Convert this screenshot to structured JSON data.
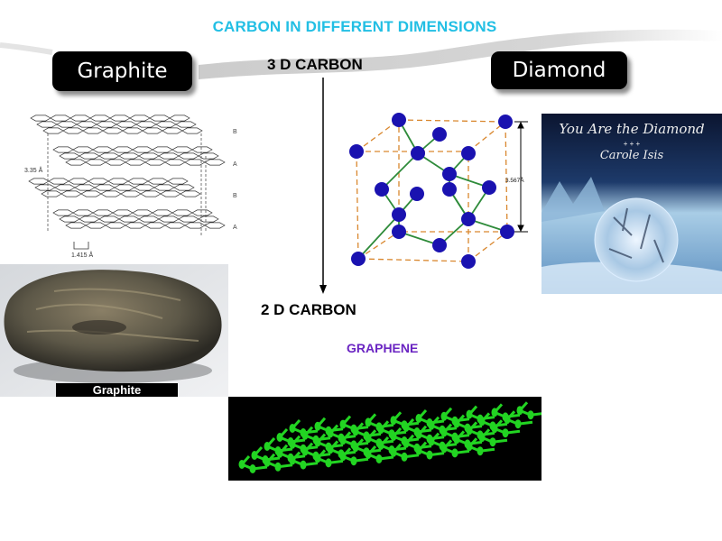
{
  "slide": {
    "title": "CARBON IN DIFFERENT DIMENSIONS",
    "graphite_button": "Graphite",
    "diamond_button": "Diamond",
    "label_3d": "3 D CARBON",
    "label_2d": "2 D CARBON",
    "label_graphene": "GRAPHENE"
  },
  "graphite_diagram": {
    "layer_labels": [
      "B",
      "A",
      "B",
      "A"
    ],
    "interlayer_spacing": "3.35 Å",
    "bond_length": "1.415 Å"
  },
  "graphite_photo": {
    "caption": "Graphite"
  },
  "diamond_diagram": {
    "lattice_constant": "3.567Å"
  },
  "diamond_album": {
    "title": "You Are the Diamond",
    "ornament": "+ + +",
    "artist": "Carole Isis"
  },
  "colors": {
    "title": "#22bfe4",
    "graphene_label": "#6a24c2",
    "atom": "#1a12b0",
    "bond": "#2e8b3a",
    "cube_edge": "#d9872e",
    "graphene": "#22d422"
  }
}
